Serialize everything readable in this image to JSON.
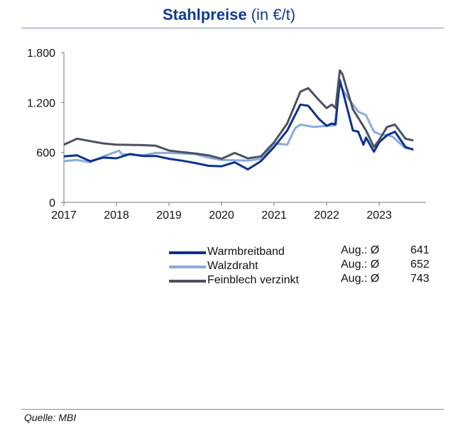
{
  "title_bold": "Stahlpreise",
  "title_rest": " (in €/t)",
  "source": "Quelle: MBI",
  "chart_data": {
    "type": "line",
    "title": "Stahlpreise (in €/t)",
    "xlim": [
      2017,
      2023.7
    ],
    "ylim": [
      0,
      1800
    ],
    "yticks": [
      {
        "v": 0,
        "label": "0"
      },
      {
        "v": 600,
        "label": "600"
      },
      {
        "v": 1200,
        "label": "1.200"
      },
      {
        "v": 1800,
        "label": "1.800"
      }
    ],
    "xticks": [
      2017,
      2018,
      2019,
      2020,
      2021,
      2022,
      2023
    ],
    "grid": false,
    "legend": "bottom-right",
    "series": [
      {
        "name": "Warmbreitband",
        "color": "#0b3290",
        "avg_label": "Aug.: Ø",
        "avg": "641",
        "x": [
          2017,
          2017.25,
          2017.5,
          2017.75,
          2018,
          2018.25,
          2018.5,
          2018.75,
          2019,
          2019.25,
          2019.5,
          2019.75,
          2020,
          2020.25,
          2020.5,
          2020.75,
          2021,
          2021.25,
          2021.5,
          2021.65,
          2021.85,
          2022,
          2022.1,
          2022.17,
          2022.25,
          2022.35,
          2022.5,
          2022.6,
          2022.7,
          2022.75,
          2022.9,
          2023,
          2023.15,
          2023.3,
          2023.5,
          2023.65
        ],
        "y": [
          552,
          566,
          495,
          538,
          529,
          580,
          557,
          557,
          524,
          501,
          473,
          439,
          433,
          481,
          396,
          495,
          665,
          863,
          1175,
          1160,
          1005,
          920,
          948,
          935,
          1472,
          1231,
          863,
          850,
          693,
          778,
          608,
          722,
          807,
          849,
          665,
          631
        ]
      },
      {
        "name": "Walzdraht",
        "color": "#8aabdc",
        "avg_label": "Aug.: Ø",
        "avg": "652",
        "x": [
          2017,
          2017.25,
          2017.5,
          2017.75,
          2018,
          2018.05,
          2018.1,
          2018.5,
          2018.75,
          2019,
          2019.5,
          2019.75,
          2020,
          2020.5,
          2020.75,
          2021,
          2021.25,
          2021.4,
          2021.5,
          2021.75,
          2022,
          2022.15,
          2022.25,
          2022.4,
          2022.6,
          2022.75,
          2022.9,
          2023,
          2023.25,
          2023.5,
          2023.65
        ],
        "y": [
          495,
          509,
          481,
          552,
          608,
          622,
          580,
          566,
          594,
          594,
          580,
          538,
          509,
          501,
          524,
          708,
          693,
          891,
          934,
          906,
          920,
          925,
          1415,
          1260,
          1090,
          1047,
          849,
          821,
          792,
          651,
          642
        ]
      },
      {
        "name": "Feinblech verzinkt",
        "color": "#4a5263",
        "avg_label": "Aug.: Ø",
        "avg": "743",
        "x": [
          2017,
          2017.25,
          2017.5,
          2017.75,
          2018,
          2018.5,
          2018.75,
          2019,
          2019.25,
          2019.5,
          2019.75,
          2020,
          2020.25,
          2020.5,
          2020.75,
          2021,
          2021.25,
          2021.5,
          2021.65,
          2021.85,
          2022,
          2022.1,
          2022.17,
          2022.25,
          2022.3,
          2022.5,
          2022.75,
          2022.9,
          2023,
          2023.15,
          2023.3,
          2023.5,
          2023.65
        ],
        "y": [
          693,
          764,
          736,
          708,
          693,
          688,
          680,
          623,
          603,
          586,
          566,
          524,
          594,
          529,
          552,
          722,
          948,
          1330,
          1373,
          1231,
          1132,
          1175,
          1132,
          1585,
          1542,
          1118,
          863,
          665,
          750,
          906,
          934,
          764,
          744
        ]
      }
    ]
  }
}
